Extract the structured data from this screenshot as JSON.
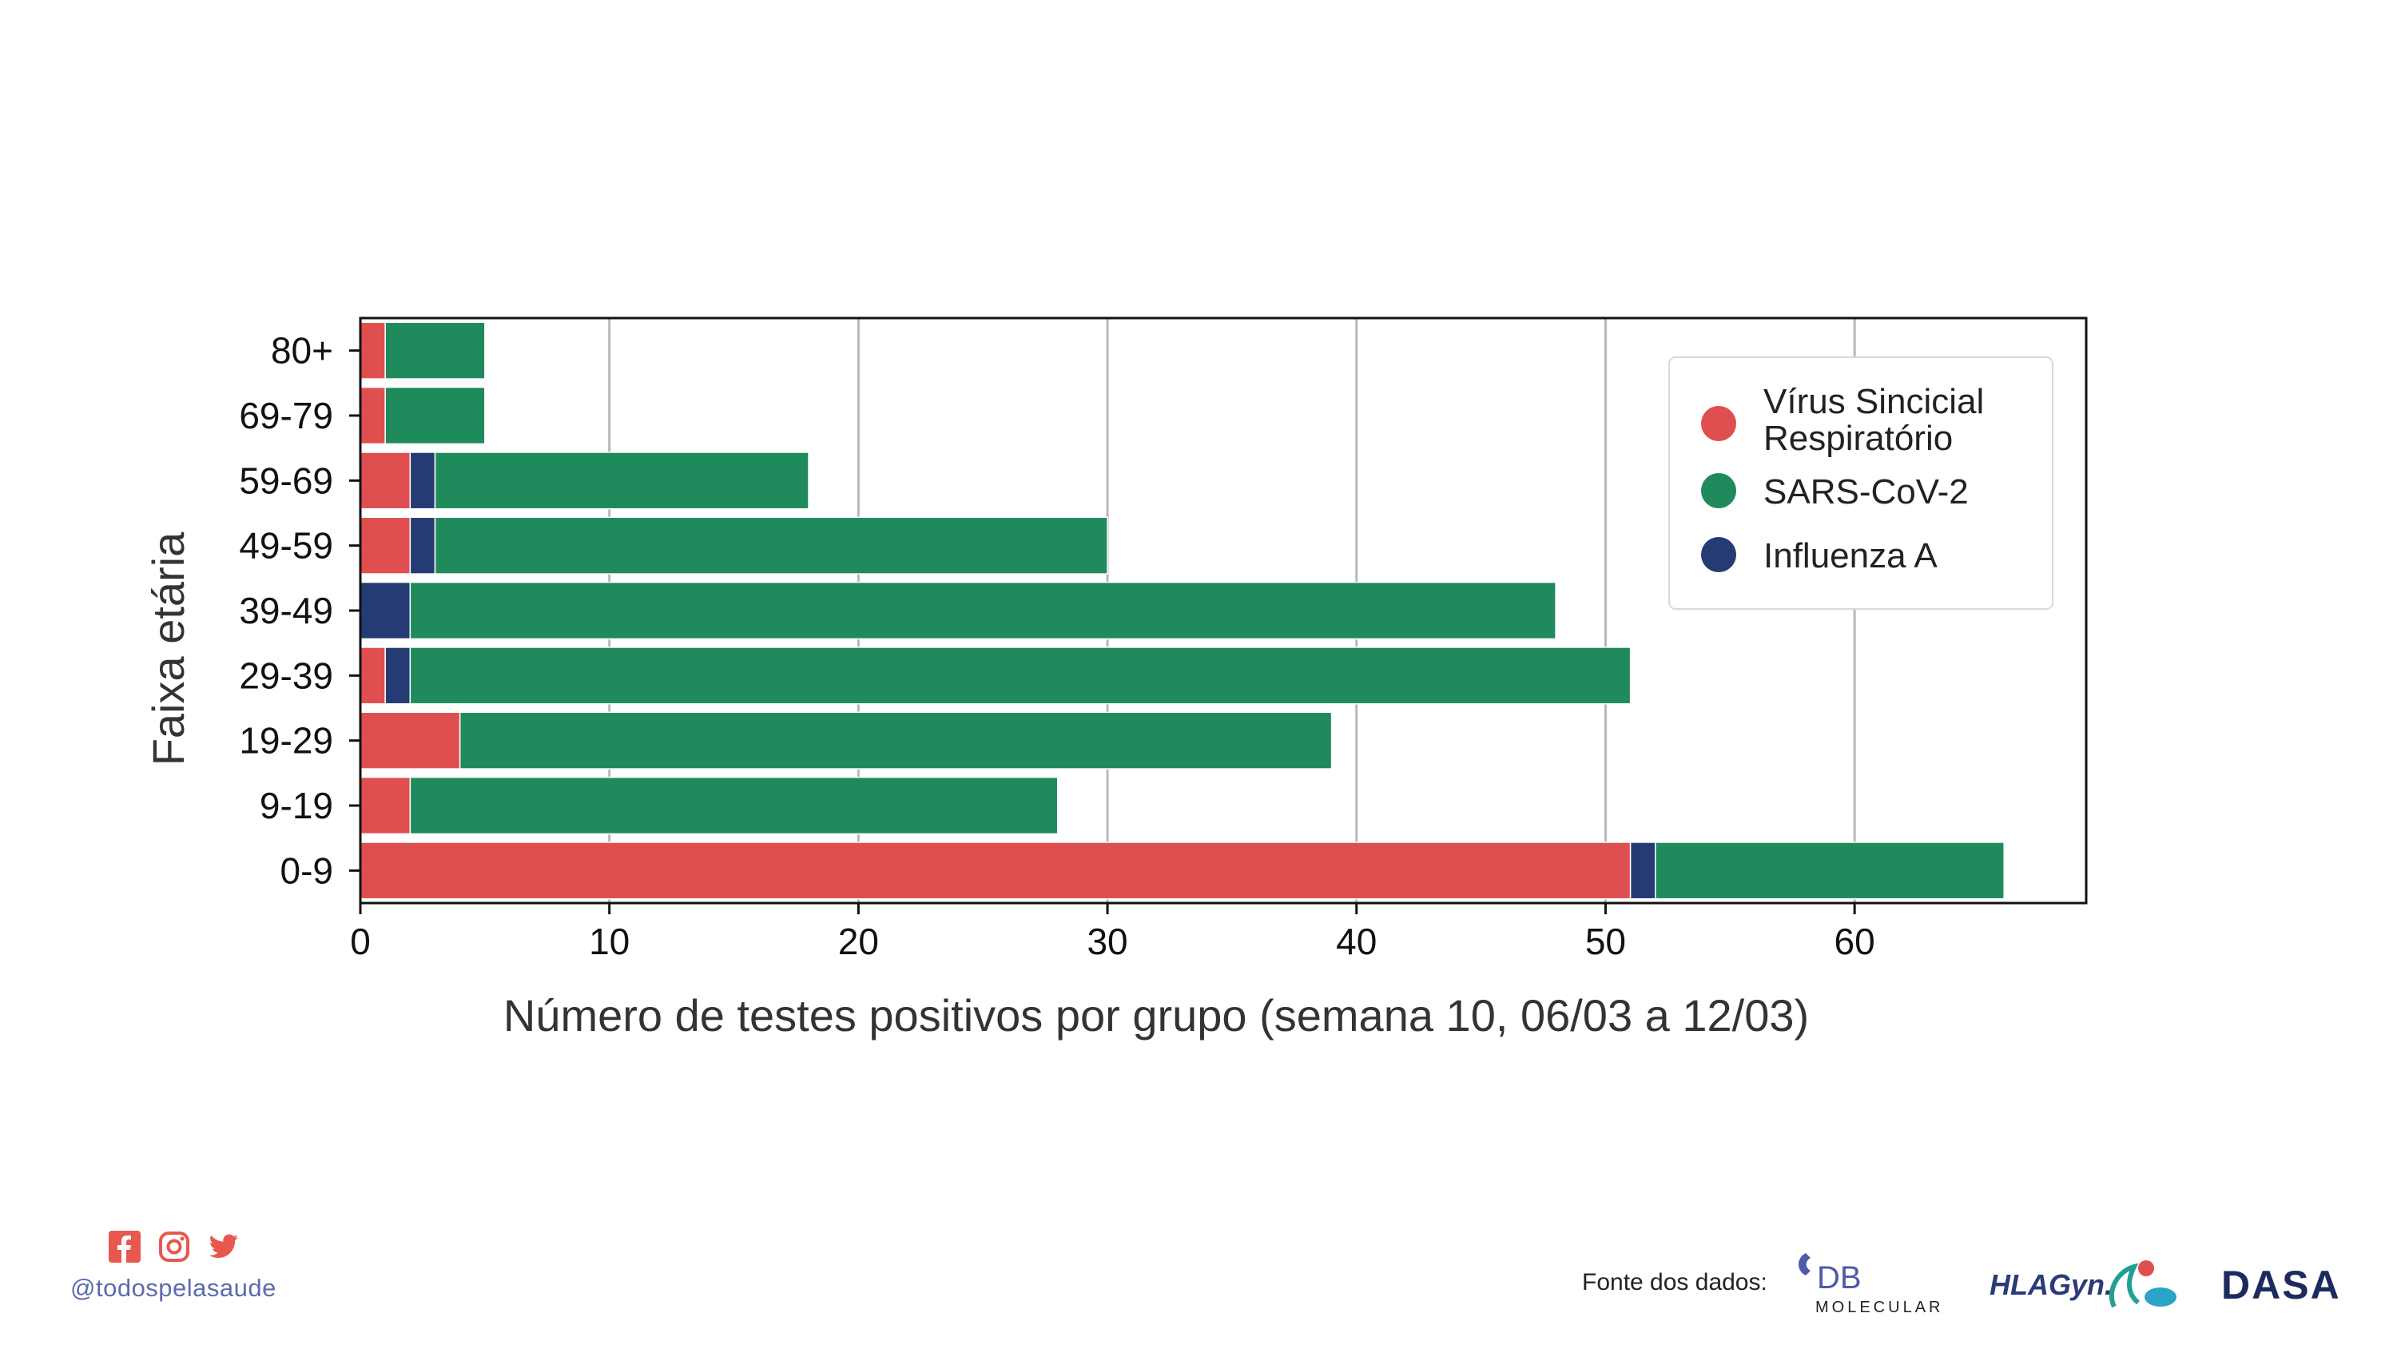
{
  "chart_data": {
    "type": "bar",
    "orientation": "horizontal",
    "stacked": true,
    "xlabel": "Número de testes positivos por grupo (semana 10, 06/03 a 12/03)",
    "ylabel": "Faixa etária",
    "xlim": [
      0,
      69.3
    ],
    "xticks": [
      0,
      10,
      20,
      30,
      40,
      50,
      60
    ],
    "grid": "vertical",
    "categories": [
      "0-9",
      "9-19",
      "19-29",
      "29-39",
      "39-49",
      "49-59",
      "59-69",
      "69-79",
      "80+"
    ],
    "series": [
      {
        "name": "Vírus Sincicial Respiratório",
        "color": "#e04f4f",
        "values": [
          51,
          2,
          4,
          1,
          0,
          2,
          2,
          1,
          1
        ]
      },
      {
        "name": "Influenza A",
        "color": "#253b73",
        "values": [
          1,
          0,
          0,
          1,
          2,
          1,
          1,
          0,
          0
        ]
      },
      {
        "name": "SARS-CoV-2",
        "color": "#1f8a5b",
        "values": [
          14,
          26,
          35,
          49,
          46,
          27,
          15,
          4,
          4
        ]
      }
    ],
    "legend": {
      "position": "top-right",
      "entries": [
        {
          "lines": [
            "Vírus Sincicial",
            "Respiratório"
          ],
          "color": "#e04f4f"
        },
        {
          "lines": [
            "SARS-CoV-2"
          ],
          "color": "#1f8a5b"
        },
        {
          "lines": [
            "Influenza A"
          ],
          "color": "#253b73"
        }
      ]
    }
  },
  "footer": {
    "handle": "@todospelasaude",
    "source_label": "Fonte dos dados:",
    "social_icons": [
      "facebook-icon",
      "instagram-icon",
      "twitter-icon"
    ],
    "social_color": "#e8584f",
    "logos": {
      "db": {
        "line1": "DB",
        "line2": "MOLECULAR",
        "color": "#4f5aa8"
      },
      "hlagyn": {
        "text": "HLAGyn.",
        "color": "#2b3a78"
      },
      "dasa": {
        "text": "DASA",
        "color": "#1d2a5c"
      }
    }
  }
}
